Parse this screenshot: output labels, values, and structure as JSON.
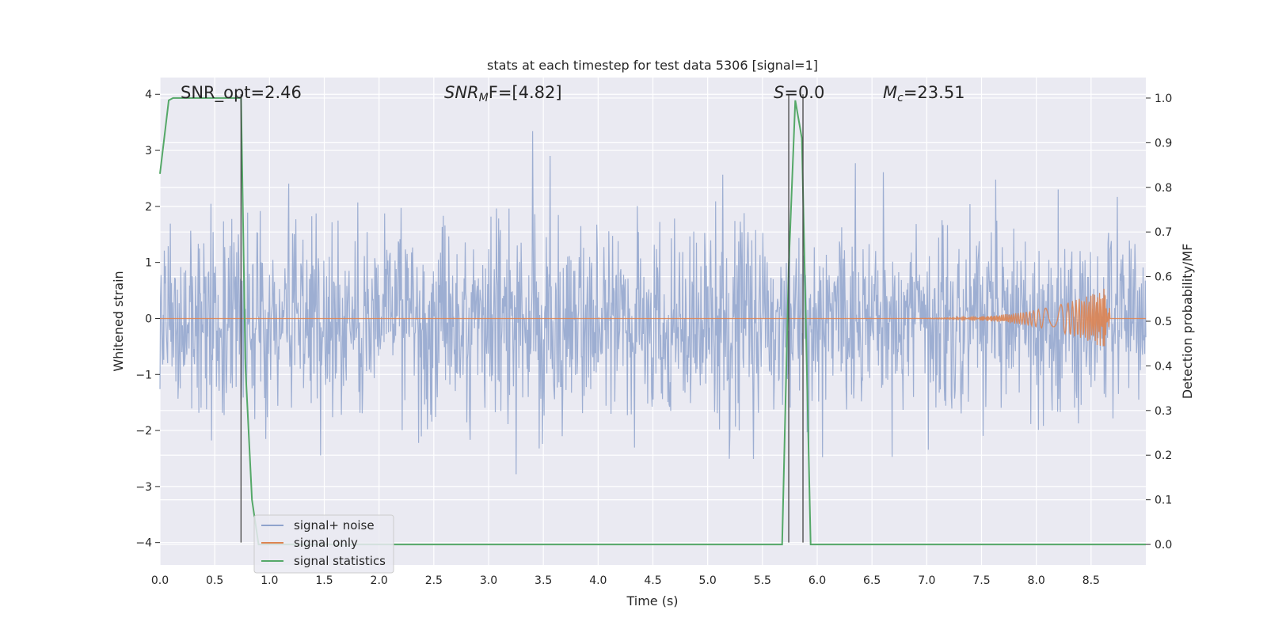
{
  "chart_data": {
    "type": "line",
    "title": "stats at each timestep for test data 5306 [signal=1]",
    "xlabel": "Time (s)",
    "ylabel_left": "Whitened strain",
    "ylabel_right": "Detection probability/MF",
    "xlim": [
      0,
      9.0
    ],
    "ylim_left": [
      -4.4,
      4.3
    ],
    "ylim_right": [
      -0.046,
      1.046
    ],
    "x_ticks": [
      "0.0",
      "0.5",
      "1.0",
      "1.5",
      "2.0",
      "2.5",
      "3.0",
      "3.5",
      "4.0",
      "4.5",
      "5.0",
      "5.5",
      "6.0",
      "6.5",
      "7.0",
      "7.5",
      "8.0",
      "8.5"
    ],
    "y_ticks_left": [
      "4",
      "3",
      "2",
      "1",
      "0",
      "−1",
      "−2",
      "−3",
      "−4"
    ],
    "y_ticks_right": [
      "1.0",
      "0.9",
      "0.8",
      "0.7",
      "0.6",
      "0.5",
      "0.4",
      "0.3",
      "0.2",
      "0.1",
      "0.0"
    ],
    "grid": true,
    "legend_position": "lower-left",
    "annotations": {
      "snr_opt": "SNR_opt=2.46",
      "snr_mf_sym": "SNR",
      "snr_mf_sub": "M",
      "snr_mf_rest": "F=[4.82]",
      "s_sym": "S",
      "s_rest": "=0.0",
      "mc_sym": "M",
      "mc_sub": "c",
      "mc_rest": "=23.51"
    },
    "series": [
      {
        "name": "signal+ noise",
        "axis": "left",
        "color": "#8fa3cc",
        "noise_std": 0.85,
        "peak_range": [
          -4.0,
          3.5
        ],
        "t_end": 9.0
      },
      {
        "name": "signal only",
        "axis": "left",
        "color": "#dd8452",
        "chirp_start": 6.3,
        "chirp_end": 8.67,
        "peak_amplitude": 0.58
      },
      {
        "name": "signal statistics",
        "axis": "right",
        "color": "#55a868",
        "x": [
          0.0,
          0.08,
          0.12,
          0.2,
          0.3,
          0.4,
          0.5,
          0.6,
          0.7,
          0.74,
          0.78,
          0.84,
          0.9,
          1.0,
          2.0,
          3.0,
          4.0,
          5.0,
          5.5,
          5.68,
          5.74,
          5.8,
          5.86,
          5.94,
          6.0,
          7.0,
          8.0,
          9.0
        ],
        "y": [
          0.83,
          0.995,
          1.0,
          1.0,
          1.0,
          1.0,
          1.0,
          1.0,
          1.0,
          1.0,
          0.4,
          0.1,
          0.0,
          0.0,
          0.0,
          0.0,
          0.0,
          0.0,
          0.0,
          0.0,
          0.62,
          0.995,
          0.91,
          0.0,
          0.0,
          0.0,
          0.0,
          0.0
        ]
      }
    ],
    "vertical_markers": [
      0.74,
      5.74,
      5.87
    ],
    "marker_range_left": [
      -4.0,
      4.0
    ]
  },
  "colors": {
    "background": "#eaeaf2",
    "grid": "#ffffff",
    "marker": "#444444"
  }
}
